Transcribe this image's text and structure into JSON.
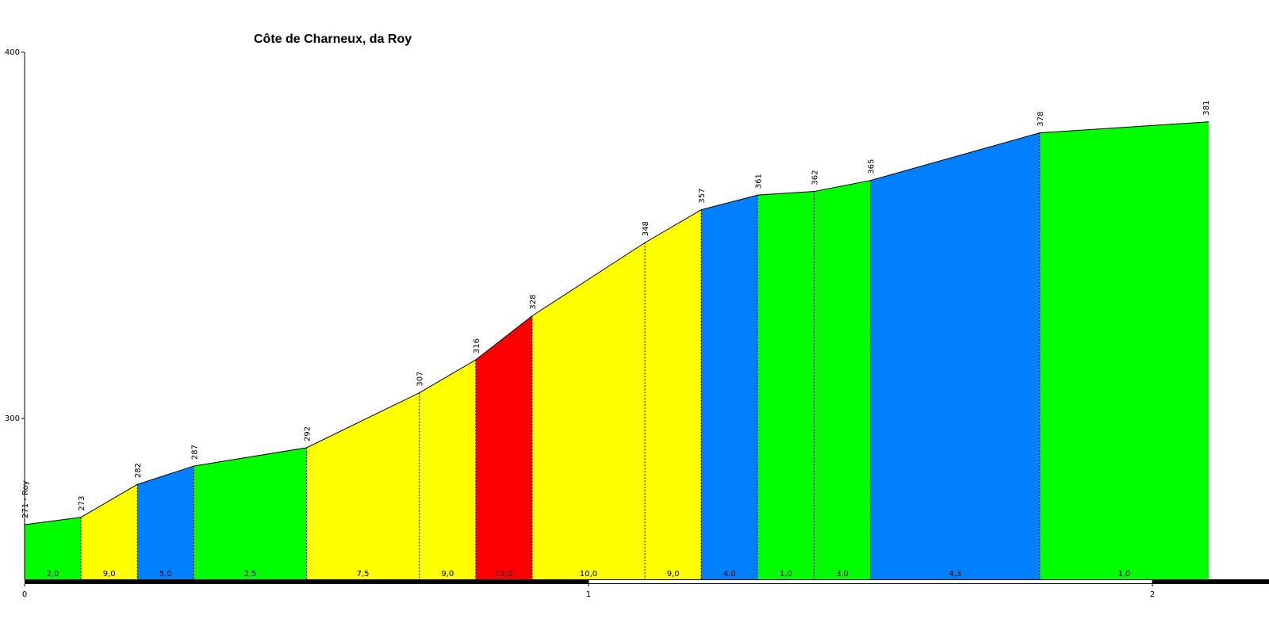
{
  "chart_data": {
    "type": "area",
    "title": "Côte de Charneux, da Roy",
    "xlabel": "",
    "ylabel": "",
    "x_ticks": [
      "0",
      "1",
      "2"
    ],
    "y_ticks": [
      "300",
      "400"
    ],
    "xlim": [
      0,
      2.2
    ],
    "ylim": [
      257,
      400
    ],
    "start_label": "271 - Roy",
    "colors": {
      "green": "#00ff00",
      "yellow": "#ffff00",
      "blue": "#0080ff",
      "red": "#ff0000"
    },
    "points": [
      {
        "km": 0.0,
        "elev": 271,
        "label": "271 - Roy"
      },
      {
        "km": 0.1,
        "elev": 273,
        "label": "273"
      },
      {
        "km": 0.2,
        "elev": 282,
        "label": "282"
      },
      {
        "km": 0.3,
        "elev": 287,
        "label": "287"
      },
      {
        "km": 0.5,
        "elev": 292,
        "label": "292"
      },
      {
        "km": 0.7,
        "elev": 307,
        "label": "307"
      },
      {
        "km": 0.8,
        "elev": 316,
        "label": "316"
      },
      {
        "km": 0.9,
        "elev": 328,
        "label": "328"
      },
      {
        "km": 1.1,
        "elev": 348,
        "label": "348"
      },
      {
        "km": 1.2,
        "elev": 357,
        "label": "357"
      },
      {
        "km": 1.3,
        "elev": 361,
        "label": "361"
      },
      {
        "km": 1.4,
        "elev": 362,
        "label": "362"
      },
      {
        "km": 1.5,
        "elev": 365,
        "label": "365"
      },
      {
        "km": 1.8,
        "elev": 378,
        "label": "378"
      },
      {
        "km": 2.1,
        "elev": 381,
        "label": "381"
      }
    ],
    "segments": [
      {
        "gradient": "2,0",
        "color": "#00ff00"
      },
      {
        "gradient": "9,0",
        "color": "#ffff00"
      },
      {
        "gradient": "5,0",
        "color": "#0080ff"
      },
      {
        "gradient": "2,5",
        "color": "#00ff00"
      },
      {
        "gradient": "7,5",
        "color": "#ffff00"
      },
      {
        "gradient": "9,0",
        "color": "#ffff00"
      },
      {
        "gradient": "12,0",
        "color": "#ff0000"
      },
      {
        "gradient": "10,0",
        "color": "#ffff00"
      },
      {
        "gradient": "9,0",
        "color": "#ffff00"
      },
      {
        "gradient": "4,0",
        "color": "#0080ff"
      },
      {
        "gradient": "1,0",
        "color": "#00ff00"
      },
      {
        "gradient": "3,0",
        "color": "#00ff00"
      },
      {
        "gradient": "4,3",
        "color": "#0080ff"
      },
      {
        "gradient": "1,0",
        "color": "#00ff00"
      }
    ]
  }
}
